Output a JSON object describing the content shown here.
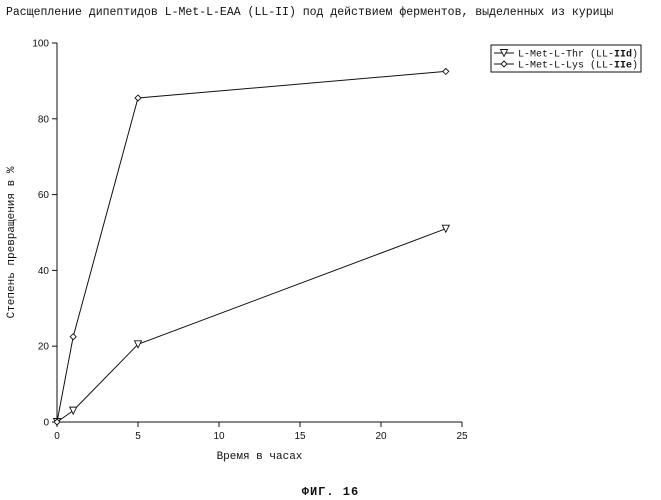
{
  "title": "Расщепление дипептидов L-Met-L-EAA (LL-II) под действием ферментов, выделенных из курицы",
  "caption": "ФИГ. 16",
  "chart_data": {
    "type": "line",
    "xlabel": "Время в часах",
    "ylabel": "Степень превращения в %",
    "xlim": [
      0,
      25
    ],
    "ylim": [
      0,
      100
    ],
    "xticks": [
      0,
      5,
      10,
      15,
      20,
      25
    ],
    "yticks": [
      0,
      20,
      40,
      60,
      80,
      100
    ],
    "grid": false,
    "legend_position": "top-right",
    "series": [
      {
        "name": "L-Met-L-Thr (LL-IId)",
        "name_prefix": "L-Met-L-Thr (LL-",
        "name_bold": "IId",
        "name_suffix": ")",
        "marker": "triangle-down",
        "x": [
          0,
          1,
          5,
          24
        ],
        "y": [
          0,
          3,
          20.5,
          51
        ]
      },
      {
        "name": "L-Met-L-Lys (LL-IIe)",
        "name_prefix": "L-Met-L-Lys (LL-",
        "name_bold": "IIe",
        "name_suffix": ")",
        "marker": "diamond",
        "x": [
          0,
          1,
          5,
          24
        ],
        "y": [
          0,
          22.5,
          85.5,
          92.5
        ]
      }
    ]
  }
}
